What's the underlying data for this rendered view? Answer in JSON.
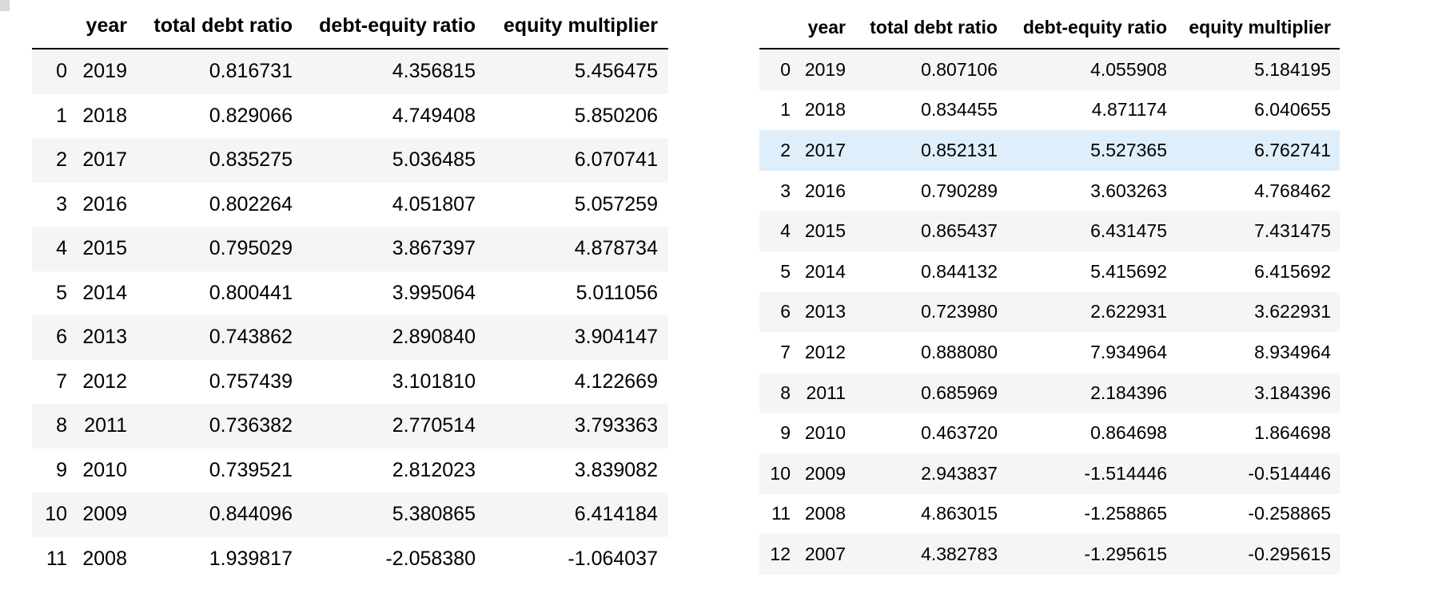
{
  "table_left": {
    "columns": [
      "",
      "year",
      "total debt ratio",
      "debt-equity ratio",
      "equity multiplier"
    ],
    "rows": [
      [
        "0",
        "2019",
        "0.816731",
        "4.356815",
        "5.456475"
      ],
      [
        "1",
        "2018",
        "0.829066",
        "4.749408",
        "5.850206"
      ],
      [
        "2",
        "2017",
        "0.835275",
        "5.036485",
        "6.070741"
      ],
      [
        "3",
        "2016",
        "0.802264",
        "4.051807",
        "5.057259"
      ],
      [
        "4",
        "2015",
        "0.795029",
        "3.867397",
        "4.878734"
      ],
      [
        "5",
        "2014",
        "0.800441",
        "3.995064",
        "5.011056"
      ],
      [
        "6",
        "2013",
        "0.743862",
        "2.890840",
        "3.904147"
      ],
      [
        "7",
        "2012",
        "0.757439",
        "3.101810",
        "4.122669"
      ],
      [
        "8",
        "2011",
        "0.736382",
        "2.770514",
        "3.793363"
      ],
      [
        "9",
        "2010",
        "0.739521",
        "2.812023",
        "3.839082"
      ],
      [
        "10",
        "2009",
        "0.844096",
        "5.380865",
        "6.414184"
      ],
      [
        "11",
        "2008",
        "1.939817",
        "-2.058380",
        "-1.064037"
      ]
    ]
  },
  "table_right": {
    "columns": [
      "",
      "year",
      "total debt ratio",
      "debt-equity ratio",
      "equity multiplier"
    ],
    "hover_row": 2,
    "rows": [
      [
        "0",
        "2019",
        "0.807106",
        "4.055908",
        "5.184195"
      ],
      [
        "1",
        "2018",
        "0.834455",
        "4.871174",
        "6.040655"
      ],
      [
        "2",
        "2017",
        "0.852131",
        "5.527365",
        "6.762741"
      ],
      [
        "3",
        "2016",
        "0.790289",
        "3.603263",
        "4.768462"
      ],
      [
        "4",
        "2015",
        "0.865437",
        "6.431475",
        "7.431475"
      ],
      [
        "5",
        "2014",
        "0.844132",
        "5.415692",
        "6.415692"
      ],
      [
        "6",
        "2013",
        "0.723980",
        "2.622931",
        "3.622931"
      ],
      [
        "7",
        "2012",
        "0.888080",
        "7.934964",
        "8.934964"
      ],
      [
        "8",
        "2011",
        "0.685969",
        "2.184396",
        "3.184396"
      ],
      [
        "9",
        "2010",
        "0.463720",
        "0.864698",
        "1.864698"
      ],
      [
        "10",
        "2009",
        "2.943837",
        "-1.514446",
        "-0.514446"
      ],
      [
        "11",
        "2008",
        "4.863015",
        "-1.258865",
        "-0.258865"
      ],
      [
        "12",
        "2007",
        "4.382783",
        "-1.295615",
        "-0.295615"
      ]
    ]
  },
  "colors": {
    "stripe": "#f5f5f5",
    "hover": "#dfeefb",
    "header_rule": "#000000"
  }
}
